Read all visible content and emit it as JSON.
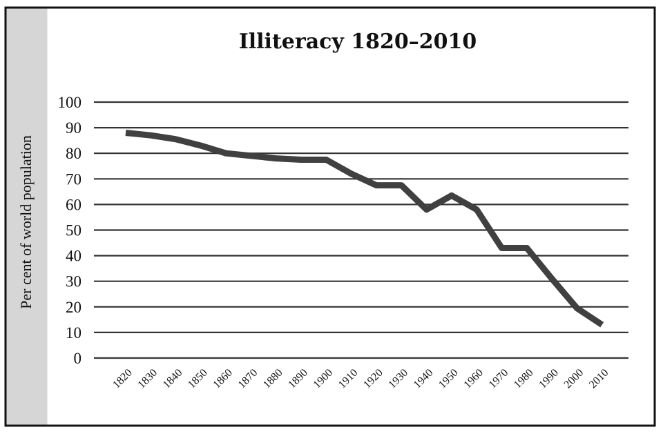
{
  "chart_data": {
    "type": "line",
    "title": "Illiteracy 1820–2010",
    "ylabel": "Per cent of world population",
    "xlabel": "",
    "x": [
      "1820",
      "1830",
      "1840",
      "1850",
      "1860",
      "1870",
      "1880",
      "1890",
      "1900",
      "1910",
      "1920",
      "1930",
      "1940",
      "1950",
      "1960",
      "1970",
      "1980",
      "1990",
      "2000",
      "2010"
    ],
    "series": [
      {
        "values": [
          88,
          87,
          85.5,
          83,
          80,
          79,
          78,
          77.5,
          77.5,
          72,
          67.5,
          67.5,
          58,
          63.5,
          58,
          43,
          43,
          31,
          19.5,
          13
        ]
      }
    ],
    "ylim": [
      0,
      100
    ],
    "yticks": [
      0,
      10,
      20,
      30,
      40,
      50,
      60,
      70,
      80,
      90,
      100
    ],
    "grid": true,
    "legend": "none",
    "colors": {
      "line": "#404040",
      "sidebar": "#d6d6d6",
      "frame": "#111111"
    }
  }
}
